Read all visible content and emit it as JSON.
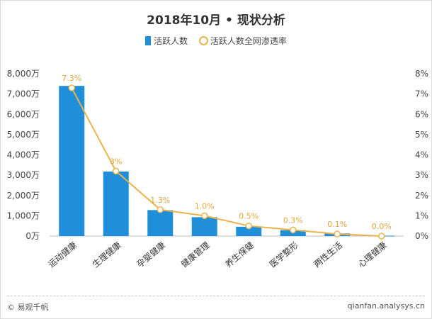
{
  "chart_data": {
    "type": "bar+line",
    "title": "2018年10月 • 现状分析",
    "categories": [
      "运动健康",
      "生理健康",
      "孕婴健康",
      "健康管理",
      "养生保健",
      "医学整形",
      "两性生活",
      "心理健康"
    ],
    "series": [
      {
        "name": "活跃人数",
        "type": "bar",
        "axis": "left",
        "color": "#1f8fda",
        "values": [
          7400,
          3180,
          1280,
          930,
          460,
          290,
          130,
          20
        ]
      },
      {
        "name": "活跃人数全网渗透率",
        "type": "line",
        "axis": "right",
        "color": "#e9b44c",
        "values": [
          7.3,
          3.2,
          1.3,
          1.0,
          0.5,
          0.3,
          0.1,
          0.0
        ],
        "labels": [
          "7.3%",
          "3%",
          "1.3%",
          "1.0%",
          "0.5%",
          "0.3%",
          "0.1%",
          "0.0%"
        ]
      }
    ],
    "yleft": {
      "ticks": [
        "0万",
        "1,000万",
        "2,000万",
        "3,000万",
        "4,000万",
        "5,000万",
        "6,000万",
        "7,000万",
        "8,000万"
      ],
      "ylim": [
        0,
        8000
      ]
    },
    "yright": {
      "ticks": [
        "0%",
        "1%",
        "2%",
        "3%",
        "4%",
        "5%",
        "6%",
        "7%",
        "8%"
      ],
      "ylim": [
        0,
        8
      ]
    },
    "legend_position": "top-center"
  },
  "footer": {
    "copyright": "© 易观千帆",
    "source": "qianfan.analysys.cn"
  }
}
